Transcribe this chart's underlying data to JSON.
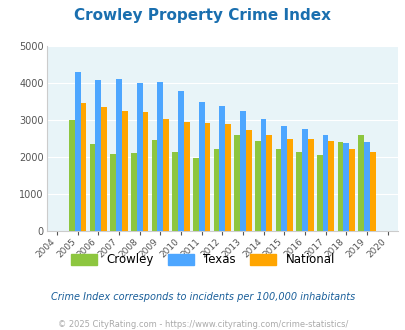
{
  "title": "Crowley Property Crime Index",
  "years": [
    2004,
    2005,
    2006,
    2007,
    2008,
    2009,
    2010,
    2011,
    2012,
    2013,
    2014,
    2015,
    2016,
    2017,
    2018,
    2019,
    2020
  ],
  "crowley": [
    null,
    3000,
    2350,
    2080,
    2110,
    2450,
    2150,
    1980,
    2220,
    2600,
    2430,
    2230,
    2140,
    2050,
    2400,
    2600,
    null
  ],
  "texas": [
    null,
    4300,
    4080,
    4100,
    4000,
    4020,
    3800,
    3490,
    3380,
    3260,
    3040,
    2830,
    2770,
    2590,
    2380,
    2400,
    null
  ],
  "national": [
    null,
    3450,
    3350,
    3260,
    3220,
    3040,
    2950,
    2920,
    2890,
    2730,
    2610,
    2500,
    2480,
    2440,
    2210,
    2130,
    null
  ],
  "crowley_color": "#8dc63f",
  "texas_color": "#4da6ff",
  "national_color": "#ffa500",
  "plot_bg": "#e8f4f8",
  "fig_bg": "#ffffff",
  "ylim": [
    0,
    5000
  ],
  "yticks": [
    0,
    1000,
    2000,
    3000,
    4000,
    5000
  ],
  "subtitle": "Crime Index corresponds to incidents per 100,000 inhabitants",
  "footer": "© 2025 CityRating.com - https://www.cityrating.com/crime-statistics/",
  "title_color": "#1a6faf",
  "subtitle_color": "#1a5f9a",
  "footer_color": "#aaaaaa",
  "legend_labels": [
    "Crowley",
    "Texas",
    "National"
  ]
}
